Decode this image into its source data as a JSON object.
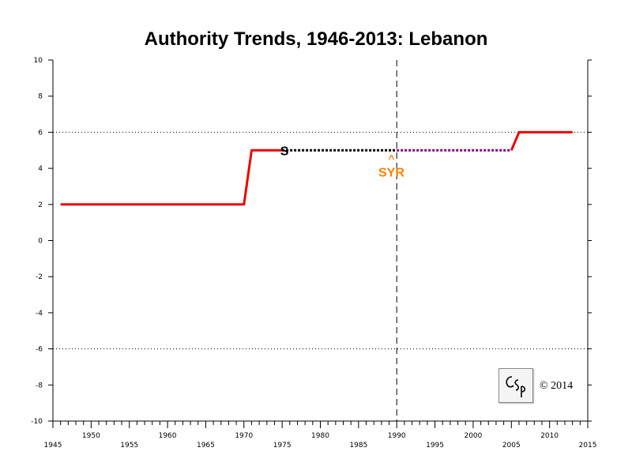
{
  "chart_data": {
    "type": "line",
    "title": "Authority Trends, 1946-2013: Lebanon",
    "xlim": [
      1945,
      2015
    ],
    "ylim": [
      -10,
      10
    ],
    "x_ticks_upper": [
      "1950",
      "1960",
      "1970",
      "1980",
      "1990",
      "2000",
      "2010"
    ],
    "x_ticks_lower": [
      "1945",
      "1955",
      "1965",
      "1975",
      "1985",
      "1995",
      "2005",
      "2015"
    ],
    "y_ticks": [
      "10",
      "8",
      "6",
      "4",
      "2",
      "0",
      "-2",
      "-4",
      "-6",
      "-8",
      "-10"
    ],
    "reference_lines": [
      6,
      -6
    ],
    "event_year": 1990,
    "series": [
      {
        "style": "solid",
        "color": "#ee0000",
        "points": [
          [
            1946,
            2
          ],
          [
            1970,
            2
          ],
          [
            1971,
            5
          ],
          [
            1975,
            5
          ]
        ]
      },
      {
        "style": "dotted",
        "color": "#000000",
        "points": [
          [
            1975,
            5
          ],
          [
            1990,
            5
          ]
        ]
      },
      {
        "style": "dotted",
        "color": "#800080",
        "points": [
          [
            1990,
            5
          ],
          [
            2005,
            5
          ]
        ]
      },
      {
        "style": "solid",
        "color": "#ee0000",
        "points": [
          [
            2005,
            5
          ],
          [
            2006,
            6
          ],
          [
            2013,
            6
          ]
        ]
      }
    ],
    "annotations": [
      {
        "text": "S",
        "x": 1975.3,
        "y": 5,
        "color": "#000000"
      },
      {
        "text": "^",
        "x": 1989.3,
        "y": 4.6,
        "color": "#ff8000"
      },
      {
        "text": "SYR",
        "x": 1989.3,
        "y": 3.8,
        "color": "#ff8000"
      }
    ]
  },
  "copyright": "© 2014",
  "logo_text": "CSP"
}
